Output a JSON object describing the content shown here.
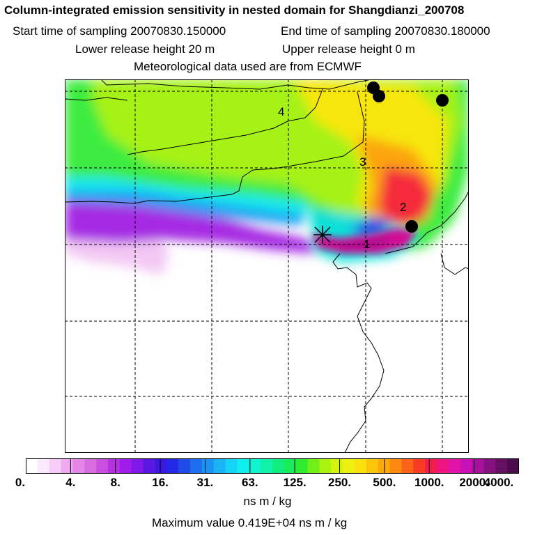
{
  "header": {
    "title": "Column-integrated emission sensitivity in nested domain for Shangdianzi_200708",
    "start_time": "Start time of sampling 20070830.150000",
    "end_time": "End time of sampling 20070830.180000",
    "lower_release": "Lower release height   20 m",
    "upper_release": "Upper release height    0 m",
    "met_data": "Meteorological data used are from ECMWF"
  },
  "map": {
    "day_labels": [
      "1",
      "2",
      "3",
      "4"
    ],
    "release_marker": "x-star-icon",
    "population_marker": "black-dot-icon"
  },
  "colorbar": {
    "tick_labels": [
      "0.",
      "4.",
      "8.",
      "16.",
      "31.",
      "63.",
      "125.",
      "250.",
      "500.",
      "1000.",
      "2000.",
      "4000."
    ],
    "colors": [
      "#ffffff",
      "#fde9fd",
      "#f8ccf8",
      "#f0a8f0",
      "#e685e8",
      "#d86de0",
      "#c84fe0",
      "#b532e2",
      "#a01ce8",
      "#7f18e8",
      "#5a17e2",
      "#3b18e0",
      "#2328e6",
      "#1f4be8",
      "#1d6ff0",
      "#1c92f4",
      "#1ab4f6",
      "#15d4f8",
      "#10eef0",
      "#10f4d0",
      "#10f2aa",
      "#10ee80",
      "#18ec58",
      "#30ec30",
      "#70f018",
      "#a8f410",
      "#d4f410",
      "#eef010",
      "#fae00c",
      "#fcc40a",
      "#fca808",
      "#fc8a10",
      "#fb6418",
      "#f83c24",
      "#f41c4c",
      "#ef1684",
      "#e014a8",
      "#c812b8",
      "#a8109e",
      "#861082",
      "#661064",
      "#4a0c4a"
    ]
  },
  "units": "ns m / kg",
  "max_value": "Maximum value  0.419E+04 ns m / kg"
}
